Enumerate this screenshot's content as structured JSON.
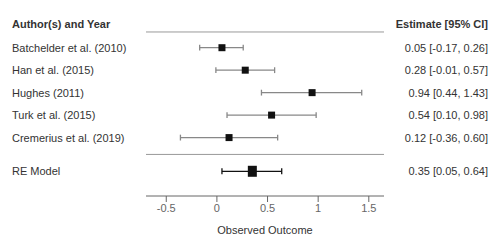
{
  "chart_data": {
    "type": "forest",
    "categories": [
      "Batchelder et al. (2010)",
      "Han et al. (2015)",
      "Hughes (2011)",
      "Turk et al. (2015)",
      "Cremerius et al. (2019)",
      "RE Model"
    ],
    "values": [
      0.05,
      0.28,
      0.94,
      0.54,
      0.12,
      0.35
    ],
    "ci_low": [
      -0.17,
      -0.01,
      0.44,
      0.1,
      -0.36,
      0.05
    ],
    "ci_high": [
      0.26,
      0.57,
      1.43,
      0.98,
      0.6,
      0.64
    ],
    "value_labels": [
      "0.05 [-0.17, 0.26]",
      "0.28 [-0.01, 0.57]",
      "0.94 [0.44, 1.43]",
      "0.54 [0.10, 0.98]",
      "0.12 [-0.36, 0.60]",
      "0.35 [0.05, 0.64]"
    ],
    "annotations": [
      "Author(s) and Year",
      "Estimate [95% CI]"
    ],
    "xlabel": "Observed Outcome",
    "xlim": [
      -0.7,
      1.65
    ],
    "xticks": [
      -0.5,
      0,
      0.5,
      1,
      1.5
    ],
    "color": "#111111",
    "marker": "square",
    "grid": false,
    "data_labels": true
  }
}
